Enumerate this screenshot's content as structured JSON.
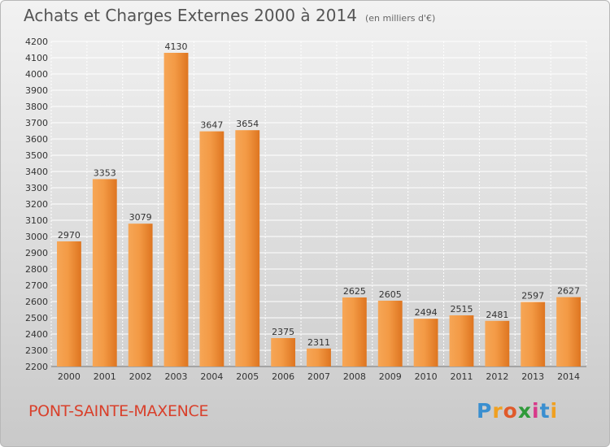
{
  "header": {
    "title": "Achats et Charges Externes 2000 à 2014",
    "subtitle": "(en milliers d'€)"
  },
  "footer": {
    "city": "PONT-SAINTE-MAXENCE",
    "logo_letters": [
      "P",
      "r",
      "o",
      "x",
      "i",
      "t",
      "i"
    ]
  },
  "colors": {
    "bar_light": "#f6a656",
    "bar_dark": "#de7520",
    "grid": "#ffffff",
    "city_text": "#d9402b"
  },
  "chart_data": {
    "type": "bar",
    "title": "Achats et Charges Externes 2000 à 2014",
    "subtitle": "(en milliers d'€)",
    "xlabel": "",
    "ylabel": "",
    "categories": [
      "2000",
      "2001",
      "2002",
      "2003",
      "2004",
      "2005",
      "2006",
      "2007",
      "2008",
      "2009",
      "2010",
      "2011",
      "2012",
      "2013",
      "2014"
    ],
    "values": [
      2970,
      3353,
      3079,
      4130,
      3647,
      3654,
      2375,
      2311,
      2625,
      2605,
      2494,
      2515,
      2481,
      2597,
      2627
    ],
    "ylim": [
      2200,
      4200
    ],
    "yticks": [
      2200,
      2300,
      2400,
      2500,
      2600,
      2700,
      2800,
      2900,
      3000,
      3100,
      3200,
      3300,
      3400,
      3500,
      3600,
      3700,
      3800,
      3900,
      4000,
      4100,
      4200
    ],
    "grid": true,
    "data_labels": true
  }
}
